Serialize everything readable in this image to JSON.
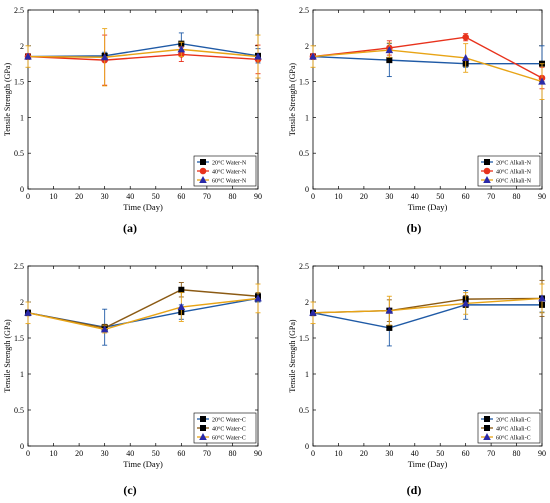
{
  "figure": {
    "panels": [
      {
        "panel_label": "(a)",
        "chart_data": {
          "type": "line",
          "xlabel": "Time (Day)",
          "ylabel": "Tensile Strength (GPa)",
          "xlim": [
            0,
            90
          ],
          "ylim": [
            0,
            2.5
          ],
          "xticks": [
            0,
            10,
            20,
            30,
            40,
            50,
            60,
            70,
            80,
            90
          ],
          "yticks": [
            0,
            0.5,
            1,
            1.5,
            2,
            2.5
          ],
          "legend_position": "bottom-right",
          "x": [
            0,
            30,
            60,
            90
          ],
          "series": [
            {
              "name": "20°C Water-N",
              "color": "#1f5aa6",
              "marker": "square",
              "values": [
                1.85,
                1.86,
                2.03,
                1.86
              ],
              "errors": [
                0.04,
                0.05,
                0.15,
                0.1
              ]
            },
            {
              "name": "40°C Water-N",
              "color": "#e8321c",
              "marker": "circle",
              "values": [
                1.85,
                1.8,
                1.88,
                1.81
              ],
              "errors": [
                0.04,
                0.35,
                0.1,
                0.2
              ]
            },
            {
              "name": "60°C Water-N",
              "color": "#e8a416",
              "marker": "triangle",
              "values": [
                1.85,
                1.84,
                1.95,
                1.85
              ],
              "errors": [
                0.15,
                0.4,
                0.1,
                0.3
              ]
            }
          ]
        }
      },
      {
        "panel_label": "(b)",
        "chart_data": {
          "type": "line",
          "xlabel": "Time (Day)",
          "ylabel": "Tensile Strength (GPa)",
          "xlim": [
            0,
            90
          ],
          "ylim": [
            0,
            2.5
          ],
          "xticks": [
            0,
            10,
            20,
            30,
            40,
            50,
            60,
            70,
            80,
            90
          ],
          "yticks": [
            0,
            0.5,
            1,
            1.5,
            2,
            2.5
          ],
          "legend_position": "bottom-right",
          "x": [
            0,
            30,
            60,
            90
          ],
          "series": [
            {
              "name": "20°C Alkali-N",
              "color": "#1f5aa6",
              "marker": "square",
              "values": [
                1.85,
                1.8,
                1.75,
                1.75
              ],
              "errors": [
                0.04,
                0.23,
                0.05,
                0.25
              ]
            },
            {
              "name": "40°C Alkali-N",
              "color": "#e8321c",
              "marker": "circle",
              "values": [
                1.85,
                1.97,
                2.12,
                1.55
              ],
              "errors": [
                0.04,
                0.1,
                0.05,
                0.15
              ]
            },
            {
              "name": "60°C Alkali-N",
              "color": "#e8a416",
              "marker": "triangle",
              "values": [
                1.85,
                1.94,
                1.83,
                1.5
              ],
              "errors": [
                0.15,
                0.1,
                0.2,
                0.25
              ]
            }
          ]
        }
      },
      {
        "panel_label": "(c)",
        "chart_data": {
          "type": "line",
          "xlabel": "Time (Day)",
          "ylabel": "Tensile Strength (GPa)",
          "xlim": [
            0,
            90
          ],
          "ylim": [
            0,
            2.5
          ],
          "xticks": [
            0,
            10,
            20,
            30,
            40,
            50,
            60,
            70,
            80,
            90
          ],
          "yticks": [
            0,
            0.5,
            1,
            1.5,
            2,
            2.5
          ],
          "legend_position": "bottom-right",
          "x": [
            0,
            30,
            60,
            90
          ],
          "series": [
            {
              "name": "20°C Water-C",
              "color": "#1f5aa6",
              "marker": "square",
              "values": [
                1.85,
                1.65,
                1.86,
                2.05
              ],
              "errors": [
                0.04,
                0.25,
                0.1,
                0.05
              ]
            },
            {
              "name": "40°C Water-C",
              "color": "#8b5a14",
              "marker": "square",
              "values": [
                1.85,
                1.64,
                2.17,
                2.08
              ],
              "errors": [
                0.04,
                0.05,
                0.1,
                0.05
              ]
            },
            {
              "name": "60°C Water-C",
              "color": "#e8a416",
              "marker": "triangle",
              "values": [
                1.85,
                1.62,
                1.93,
                2.05
              ],
              "errors": [
                0.15,
                0.05,
                0.2,
                0.2
              ]
            }
          ]
        }
      },
      {
        "panel_label": "(d)",
        "chart_data": {
          "type": "line",
          "xlabel": "Time (Day)",
          "ylabel": "Tensile Strength (GPa)",
          "xlim": [
            0,
            90
          ],
          "ylim": [
            0,
            2.5
          ],
          "xticks": [
            0,
            10,
            20,
            30,
            40,
            50,
            60,
            70,
            80,
            90
          ],
          "yticks": [
            0,
            0.5,
            1,
            1.5,
            2,
            2.5
          ],
          "legend_position": "bottom-right",
          "x": [
            0,
            30,
            60,
            90
          ],
          "series": [
            {
              "name": "20°C Alkali-C",
              "color": "#1f5aa6",
              "marker": "square",
              "values": [
                1.85,
                1.64,
                1.96,
                1.96
              ],
              "errors": [
                0.04,
                0.25,
                0.2,
                0.1
              ]
            },
            {
              "name": "40°C Alkali-C",
              "color": "#8b5a14",
              "marker": "square",
              "values": [
                1.85,
                1.88,
                2.04,
                2.05
              ],
              "errors": [
                0.04,
                0.15,
                0.05,
                0.25
              ]
            },
            {
              "name": "60°C Alkali-C",
              "color": "#e8a416",
              "marker": "triangle",
              "values": [
                1.85,
                1.88,
                1.98,
                2.05
              ],
              "errors": [
                0.15,
                0.2,
                0.15,
                0.2
              ]
            }
          ]
        }
      }
    ]
  }
}
